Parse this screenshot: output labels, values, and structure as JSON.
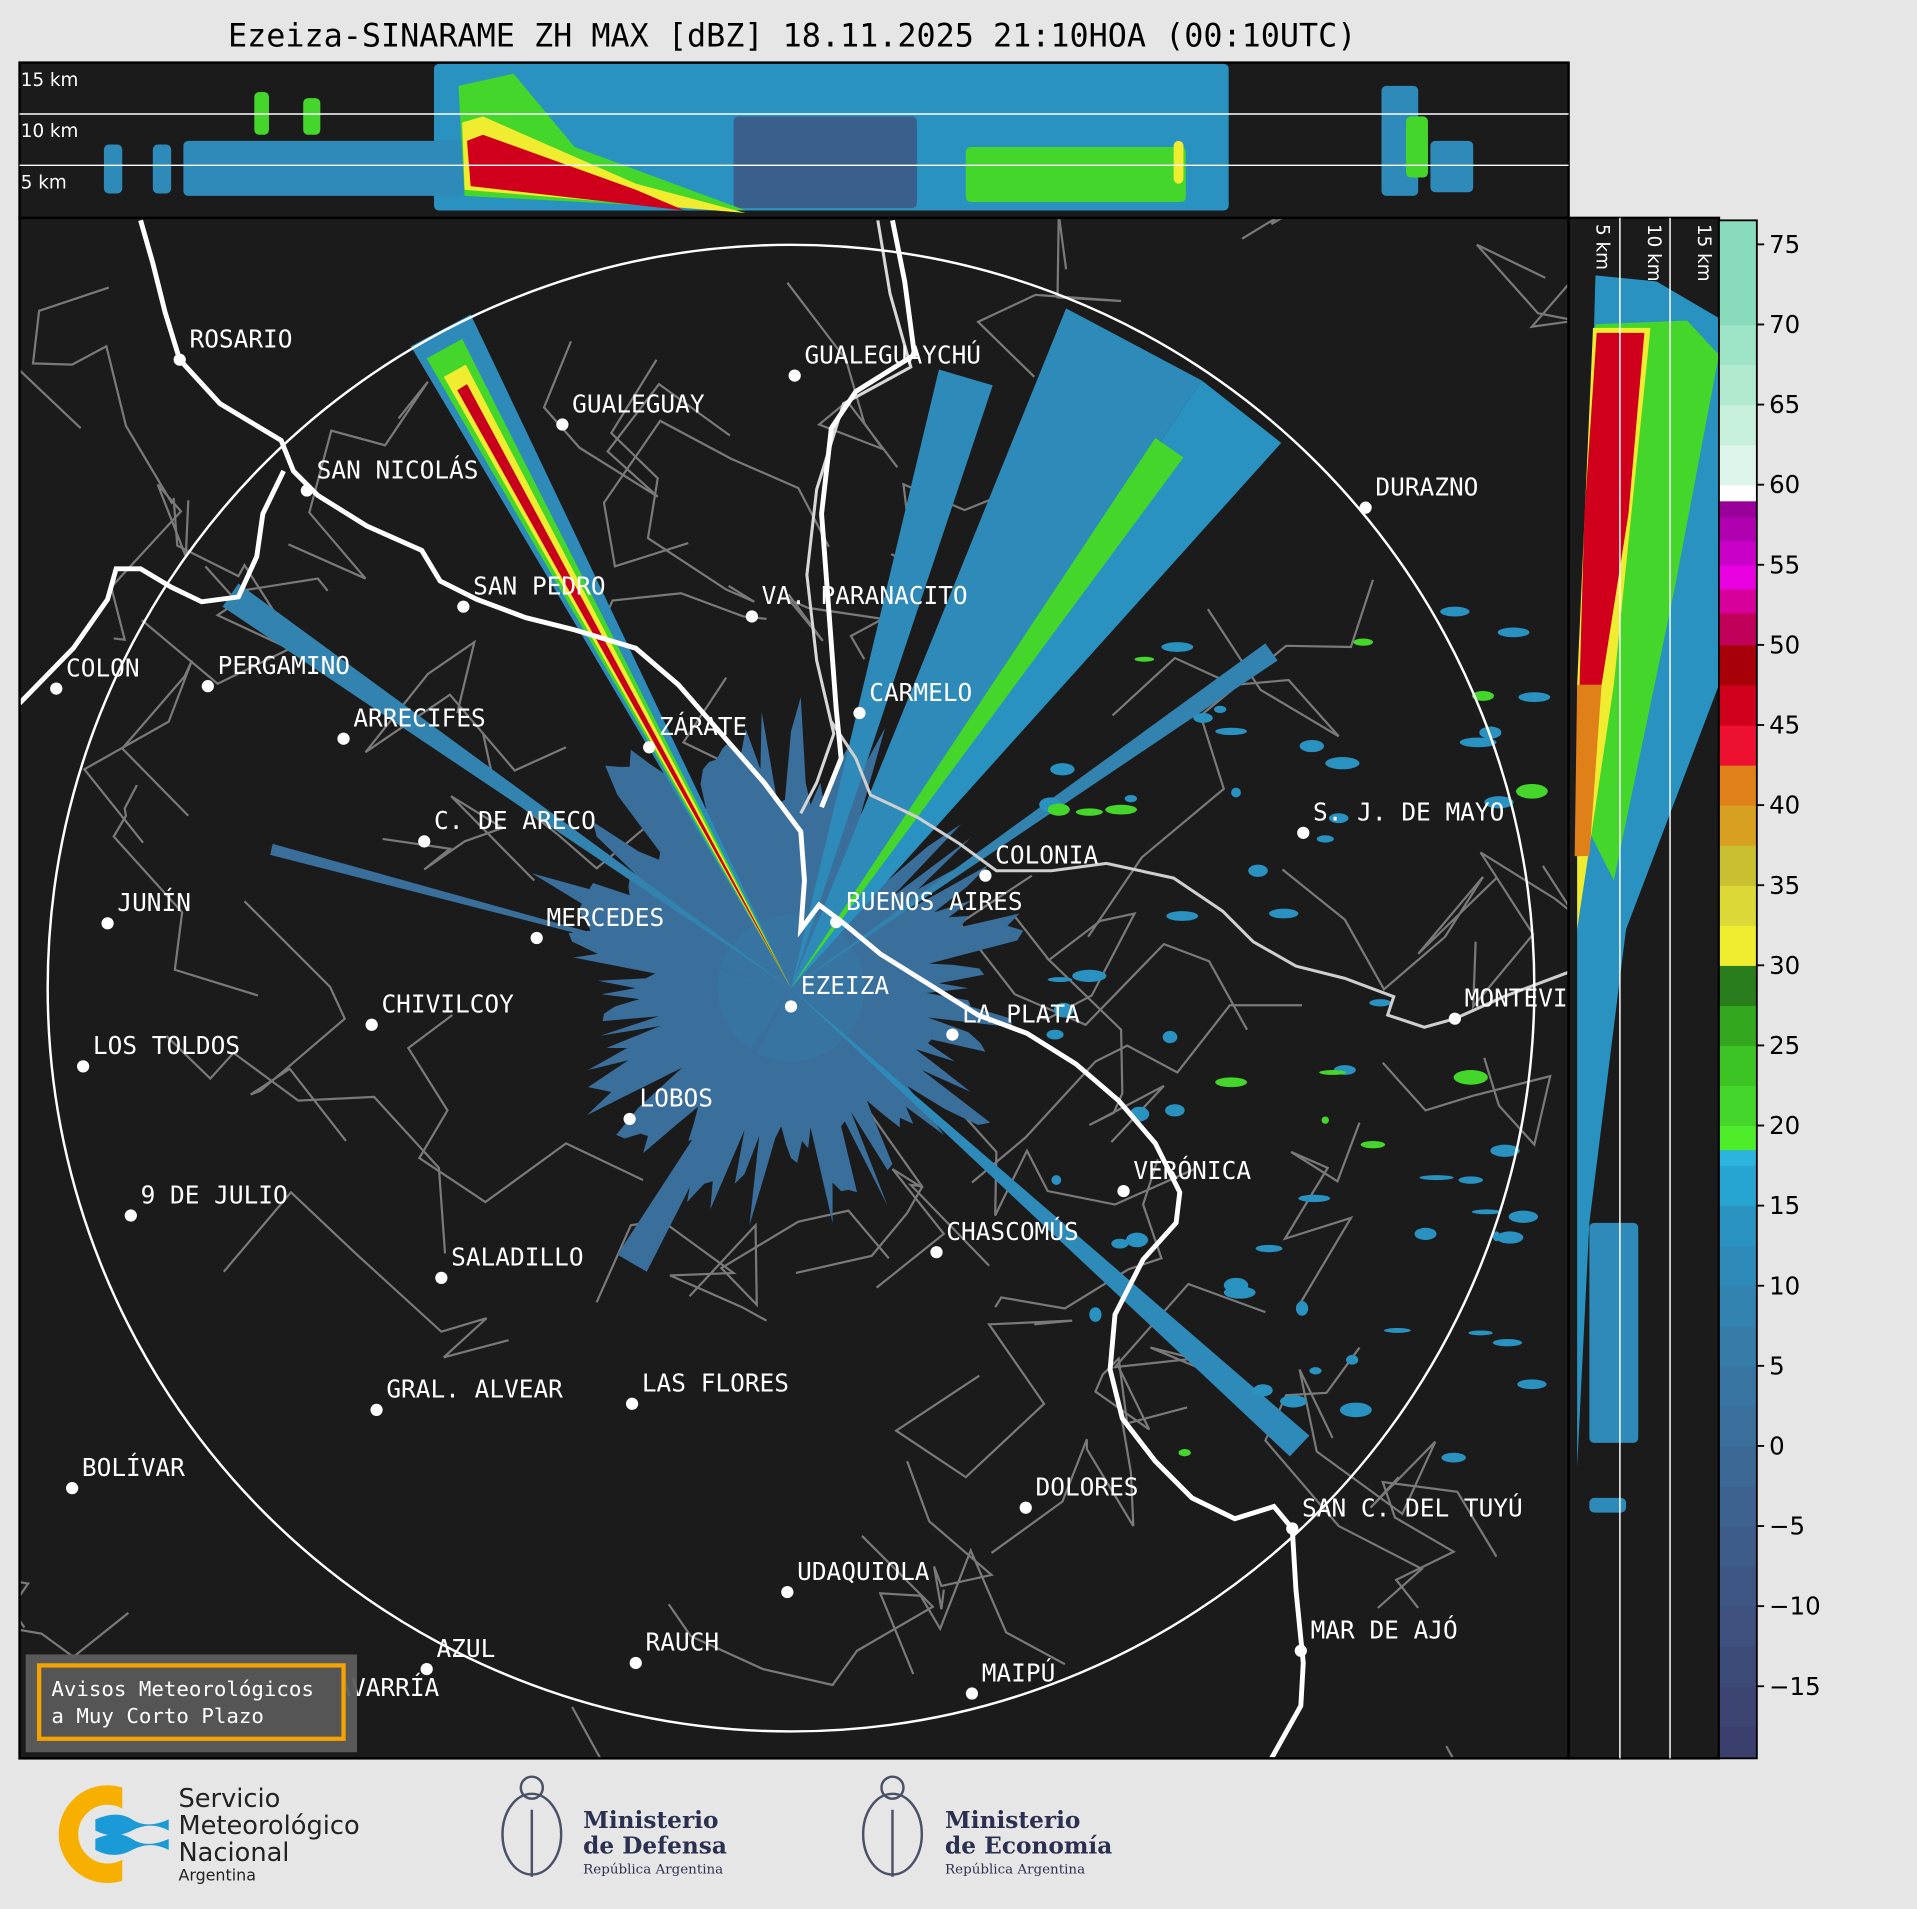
{
  "title": "Ezeiza-SINARAME ZH MAX [dBZ] 18.11.2025 21:10HOA (00:10UTC)",
  "top_panel": {
    "height_labels": [
      "15 km",
      "10 km",
      "5 km"
    ]
  },
  "side_panel": {
    "height_labels": [
      "5 km",
      "10 km",
      "15 km"
    ]
  },
  "map": {
    "background": "#1b1b1b",
    "radar_site": "EZEIZA",
    "cities": [
      "ROSARIO",
      "GUALEGUAYCHÚ",
      "GUALEGUAY",
      "SAN NICOLÁS",
      "DURAZNO",
      "SAN PEDRO",
      "VA. PARANACITO",
      "COLON",
      "PERGAMINO",
      "CARMELO",
      "ARRECIFES",
      "ZÁRATE",
      "S. J. DE MAYO",
      "C. DE ARECO",
      "COLONIA",
      "JUNÍN",
      "BUENOS AIRES",
      "MERCEDES",
      "EZEIZA",
      "MONTEVIDEO",
      "CHIVILCOY",
      "LA PLATA",
      "LOS TOLDOS",
      "LOBOS",
      "VERÓNICA",
      "9 DE JULIO",
      "CHASCOMÚS",
      "SALADILLO",
      "GRAL. ALVEAR",
      "LAS FLORES",
      "BOLÍVAR",
      "DOLORES",
      "SAN C. DEL TUYÚ",
      "UDAQUIOLA",
      "MAR DE AJÓ",
      "AZUL",
      "RAUCH",
      "OLAVARRÍA",
      "MAIPÚ"
    ]
  },
  "alert_box": {
    "line1": "Avisos Meteorológicos",
    "line2": "a Muy Corto Plazo",
    "border_color": "#f5a300"
  },
  "colorbar": {
    "unit": "dBZ",
    "ticks": [
      "75",
      "70",
      "65",
      "60",
      "55",
      "50",
      "45",
      "40",
      "35",
      "30",
      "25",
      "20",
      "15",
      "10",
      "5",
      "0",
      "−5",
      "−10",
      "−15"
    ],
    "range": [
      -19.5,
      76.5
    ],
    "bins": [
      [
        -20,
        -17.5,
        "#3b3f6e"
      ],
      [
        -17.5,
        -15,
        "#3c4472"
      ],
      [
        -15,
        -12.5,
        "#3c4a78"
      ],
      [
        -12.5,
        -10,
        "#3d507e"
      ],
      [
        -10,
        -7.5,
        "#3d5684"
      ],
      [
        -7.5,
        -5,
        "#3d5c8a"
      ],
      [
        -5,
        -2.5,
        "#3d6290"
      ],
      [
        -2.5,
        0,
        "#3c6896"
      ],
      [
        0,
        2.5,
        "#3a6f9c"
      ],
      [
        2.5,
        5,
        "#3875a2"
      ],
      [
        5,
        7.5,
        "#357ca8"
      ],
      [
        7.5,
        10,
        "#3283b0"
      ],
      [
        10,
        12.5,
        "#2e8ab8"
      ],
      [
        12.5,
        15,
        "#2a92c0"
      ],
      [
        15,
        17.5,
        "#26a4d2"
      ],
      [
        17.5,
        18.5,
        "#2ab4de"
      ],
      [
        18.5,
        20,
        "#4ded2a"
      ],
      [
        20,
        22.5,
        "#44d62a"
      ],
      [
        22.5,
        25,
        "#3cc424"
      ],
      [
        25,
        27.5,
        "#33a81f"
      ],
      [
        27.5,
        30,
        "#2a7d1c"
      ],
      [
        30,
        32.5,
        "#f0ec30"
      ],
      [
        32.5,
        35,
        "#dcd838"
      ],
      [
        35,
        37.5,
        "#c8c030"
      ],
      [
        37.5,
        40,
        "#d8a020"
      ],
      [
        40,
        42.5,
        "#e08018"
      ],
      [
        42.5,
        45,
        "#ee1030"
      ],
      [
        45,
        47.5,
        "#d0001c"
      ],
      [
        47.5,
        50,
        "#a80008"
      ],
      [
        50,
        52,
        "#c0005a"
      ],
      [
        52,
        53.5,
        "#d8009a"
      ],
      [
        53.5,
        55,
        "#e800e0"
      ],
      [
        55,
        56.5,
        "#c800c8"
      ],
      [
        56.5,
        58,
        "#b000b0"
      ],
      [
        58,
        59,
        "#9a009a"
      ],
      [
        59,
        60,
        "#ffffff"
      ],
      [
        60,
        62.5,
        "#def5ea"
      ],
      [
        62.5,
        65,
        "#c6f0dc"
      ],
      [
        65,
        67.5,
        "#b2ead0"
      ],
      [
        67.5,
        70,
        "#9ee4c6"
      ],
      [
        70,
        77,
        "#88dcbc"
      ]
    ]
  },
  "footer": {
    "smn": {
      "line1": "Servicio",
      "line2": "Meteorológico",
      "line3": "Nacional",
      "line4": "Argentina"
    },
    "defensa": {
      "line1": "Ministerio",
      "line2": "de Defensa",
      "line3": "República Argentina"
    },
    "economia": {
      "line1": "Ministerio",
      "line2": "de Economía",
      "line3": "República Argentina"
    }
  }
}
